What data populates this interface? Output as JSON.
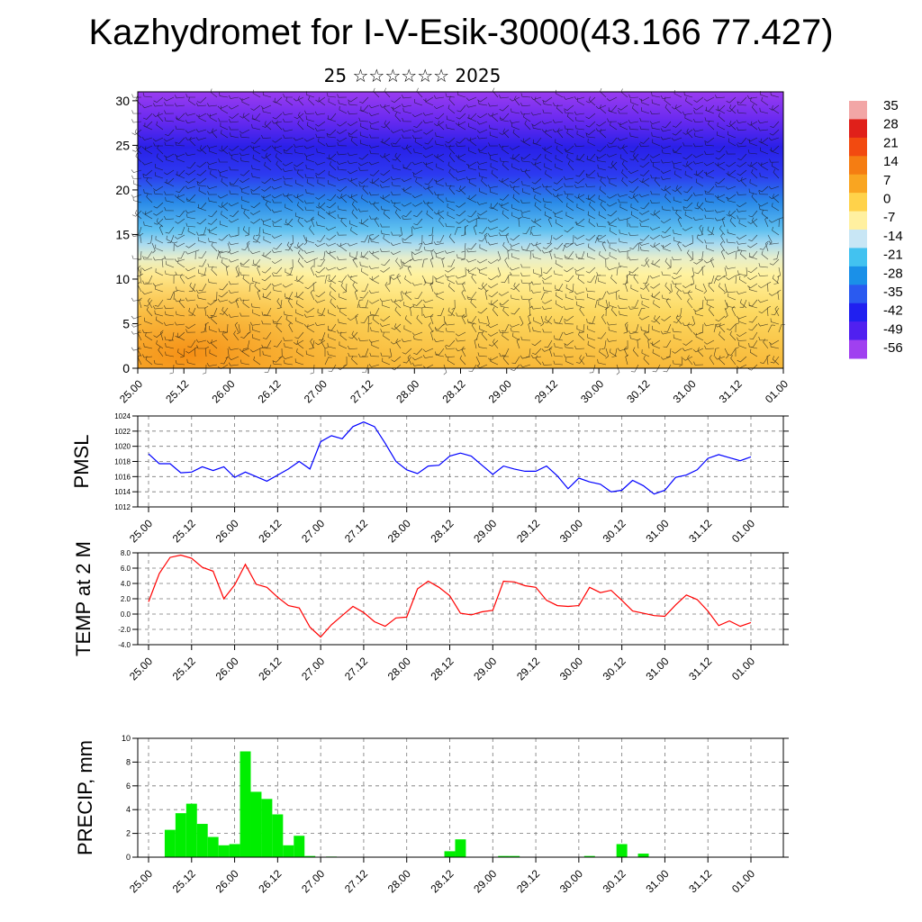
{
  "title": "Kazhydromet for I-V-Esik-3000(43.166 77.427)",
  "subtitle": "25 ☆☆☆☆☆☆ 2025",
  "time_ticks": [
    "25.00",
    "25.12",
    "26.00",
    "26.12",
    "27.00",
    "27.12",
    "28.00",
    "28.12",
    "29.00",
    "29.12",
    "30.00",
    "30.12",
    "31.00",
    "31.12",
    "01.00"
  ],
  "chart_data": [
    {
      "type": "heatmap",
      "name": "height-time section",
      "x_range": [
        0,
        168
      ],
      "ylim": [
        0,
        31
      ],
      "yticks": [
        "0",
        "5",
        "10",
        "15",
        "20",
        "25",
        "30"
      ],
      "colorbar_labels": [
        "35",
        "28",
        "21",
        "14",
        "7",
        "0",
        "-7",
        "-14",
        "-21",
        "-28",
        "-35",
        "-42",
        "-49",
        "-56"
      ],
      "colorbar_colors": [
        "#f2a6a6",
        "#e0201a",
        "#f24a10",
        "#f57d12",
        "#f9a521",
        "#ffd24a",
        "#fff0a0",
        "#c8e6f5",
        "#42c2f0",
        "#1a90e8",
        "#2a5af0",
        "#2020f0",
        "#5020f0",
        "#a040f0"
      ]
    },
    {
      "type": "line",
      "ylabel": "PMSL",
      "color": "#0000ff",
      "ylim": [
        1012,
        1024
      ],
      "yticks": [
        "1012",
        "1014",
        "1016",
        "1018",
        "1020",
        "1022",
        "1024"
      ],
      "x_step_hours": 3,
      "values": [
        1019.0,
        1017.7,
        1017.7,
        1016.5,
        1016.6,
        1017.3,
        1016.8,
        1017.3,
        1015.9,
        1016.6,
        1016.0,
        1015.4,
        1016.2,
        1017.0,
        1018.0,
        1017.0,
        1020.6,
        1021.4,
        1021.0,
        1022.6,
        1023.2,
        1022.6,
        1020.4,
        1018.0,
        1016.9,
        1016.4,
        1017.4,
        1017.5,
        1018.7,
        1019.1,
        1018.7,
        1017.5,
        1016.3,
        1017.4,
        1017.0,
        1016.7,
        1016.7,
        1017.4,
        1016.1,
        1014.4,
        1015.8,
        1015.3,
        1015.0,
        1014.0,
        1014.2,
        1015.5,
        1014.8,
        1013.7,
        1014.2,
        1015.9,
        1016.2,
        1016.9,
        1018.4,
        1018.9,
        1018.5,
        1018.1,
        1018.6
      ]
    },
    {
      "type": "line",
      "ylabel": "TEMP at 2 M",
      "color": "#ff0000",
      "ylim": [
        -4,
        8
      ],
      "yticks": [
        "-4.0",
        "-2.0",
        "0.0",
        "2.0",
        "4.0",
        "6.0",
        "8.0"
      ],
      "x_step_hours": 3,
      "values": [
        1.6,
        5.3,
        7.4,
        7.7,
        7.3,
        6.1,
        5.6,
        2.0,
        3.8,
        6.5,
        3.9,
        3.5,
        2.2,
        1.1,
        0.8,
        -1.7,
        -3.0,
        -1.4,
        -0.2,
        1.0,
        0.2,
        -1.0,
        -1.6,
        -0.5,
        -0.4,
        3.3,
        4.3,
        3.5,
        2.4,
        0.1,
        -0.1,
        0.3,
        0.5,
        4.3,
        4.2,
        3.7,
        3.5,
        1.8,
        1.1,
        1.0,
        1.1,
        3.5,
        2.8,
        3.1,
        1.8,
        0.4,
        0.1,
        -0.2,
        -0.3,
        1.2,
        2.5,
        1.9,
        0.4,
        -1.5,
        -0.9,
        -1.6,
        -1.1
      ]
    },
    {
      "type": "bar",
      "ylabel": "PRECIP, mm",
      "color": "#00ee00",
      "ylim": [
        0,
        10
      ],
      "yticks": [
        "0",
        "2",
        "4",
        "6",
        "8",
        "10"
      ],
      "x_step_hours": 3,
      "values": [
        0,
        0,
        2.3,
        3.7,
        4.5,
        2.8,
        1.7,
        1.0,
        1.1,
        8.9,
        5.5,
        4.9,
        3.6,
        1.0,
        1.8,
        0.1,
        0,
        0.05,
        0,
        0,
        0,
        0,
        0,
        0,
        0,
        0,
        0,
        0,
        0.5,
        1.5,
        0,
        0,
        0,
        0.1,
        0.1,
        0,
        0,
        0,
        0,
        0,
        0,
        0.1,
        0,
        0,
        1.1,
        0,
        0.3,
        0,
        0,
        0,
        0,
        0,
        0,
        0,
        0,
        0,
        0
      ]
    }
  ]
}
